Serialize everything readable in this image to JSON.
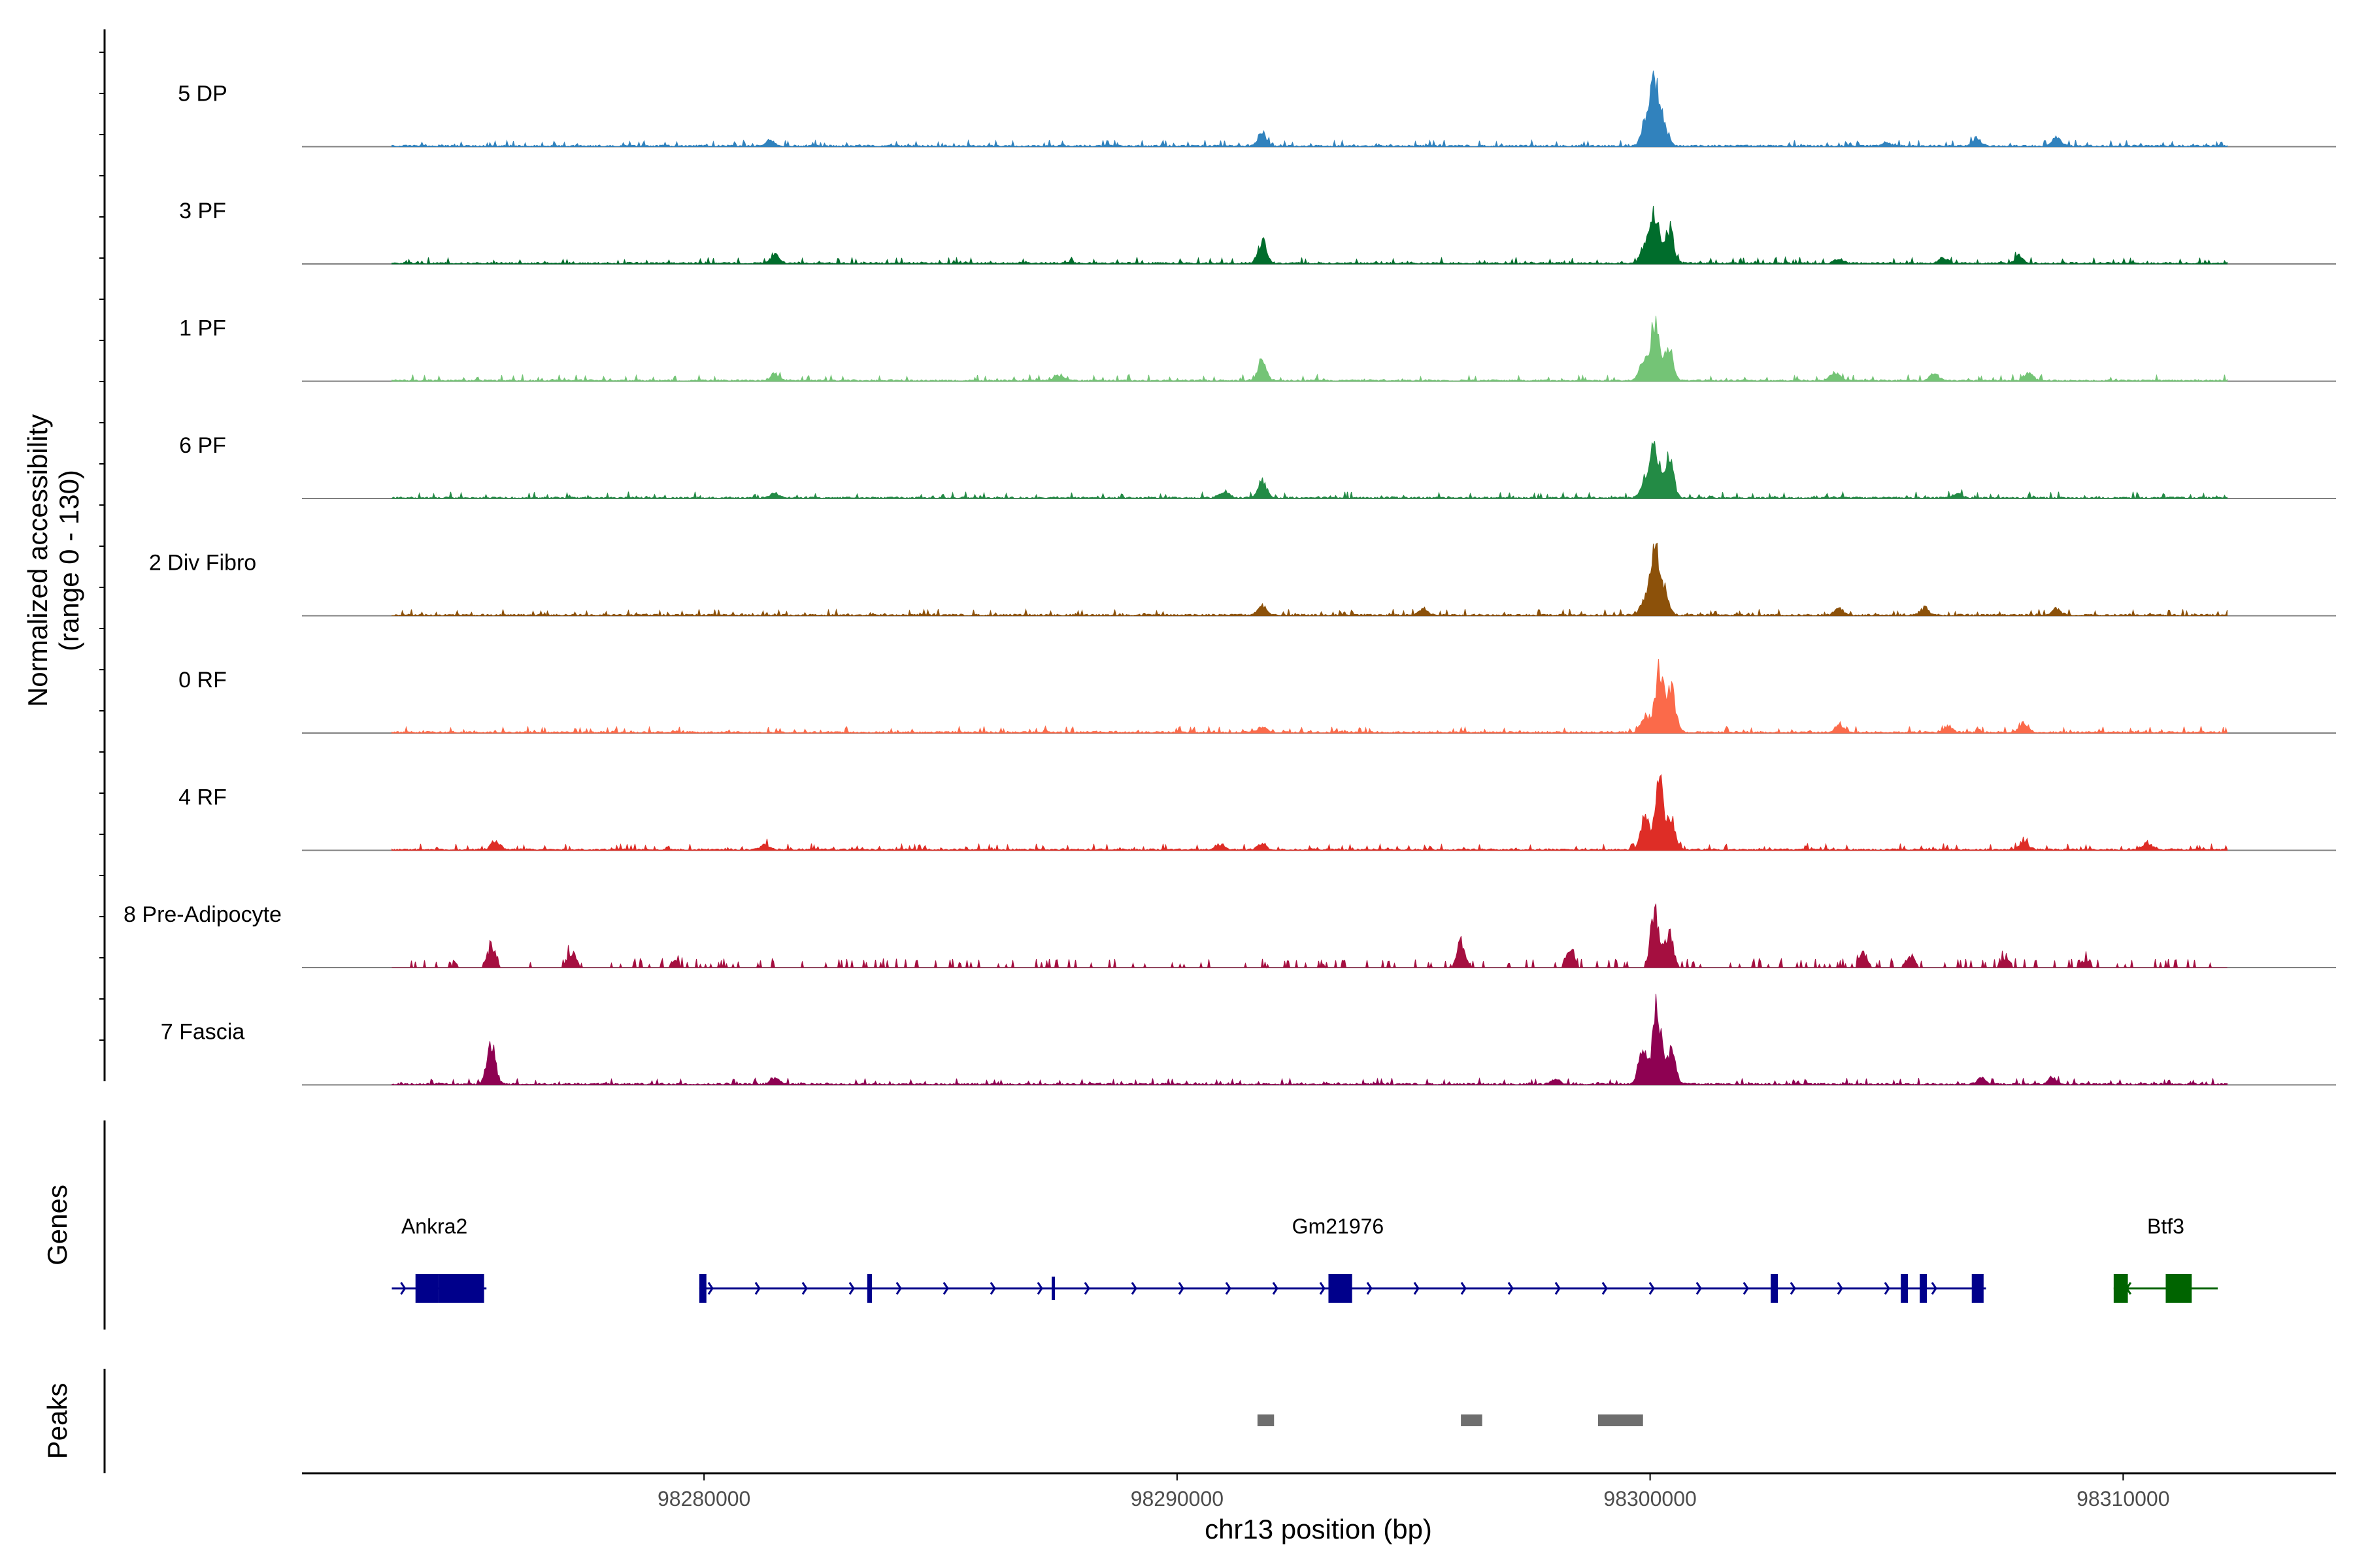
{
  "chart_data": {
    "type": "area",
    "title": "",
    "region": {
      "chromosome": "chr13",
      "start": 98271500,
      "end": 98314500,
      "track_start": 98273400,
      "track_end": 98312200
    },
    "ylabel_line1": "Normalized accessibility",
    "ylabel_line2": "(range 0 - 130)",
    "ylim": [
      0,
      130
    ],
    "xlabel": "chr13 position (bp)",
    "xticks": [
      98280000,
      98290000,
      98300000,
      98310000
    ],
    "xtick_labels": [
      "98280000",
      "98290000",
      "98300000",
      "98310000"
    ],
    "tracks": [
      {
        "name": "5 DP",
        "color": "#3182bd",
        "sparse": false,
        "peaks": [
          [
            98300100,
            110
          ],
          [
            98299900,
            40
          ],
          [
            98300300,
            30
          ],
          [
            98291800,
            22
          ],
          [
            98281400,
            10
          ],
          [
            98306900,
            14
          ],
          [
            98308600,
            14
          ],
          [
            98305000,
            6
          ]
        ]
      },
      {
        "name": "3 PF",
        "color": "#006d2c",
        "sparse": false,
        "peaks": [
          [
            98300100,
            80
          ],
          [
            98300400,
            60
          ],
          [
            98299900,
            30
          ],
          [
            98291800,
            38
          ],
          [
            98281500,
            18
          ],
          [
            98306200,
            10
          ],
          [
            98307800,
            14
          ],
          [
            98304000,
            8
          ]
        ]
      },
      {
        "name": "1 PF",
        "color": "#74c476",
        "sparse": false,
        "peaks": [
          [
            98300100,
            100
          ],
          [
            98300400,
            55
          ],
          [
            98299850,
            30
          ],
          [
            98291800,
            35
          ],
          [
            98281500,
            12
          ],
          [
            98303900,
            14
          ],
          [
            98308000,
            14
          ],
          [
            98306000,
            12
          ],
          [
            98287500,
            10
          ]
        ]
      },
      {
        "name": "6 PF",
        "color": "#238b45",
        "sparse": false,
        "peaks": [
          [
            98300100,
            90
          ],
          [
            98300400,
            70
          ],
          [
            98299900,
            30
          ],
          [
            98291800,
            30
          ],
          [
            98291000,
            10
          ],
          [
            98281500,
            8
          ],
          [
            98306500,
            8
          ]
        ]
      },
      {
        "name": "2 Div Fibro",
        "color": "#8c510a",
        "sparse": false,
        "peaks": [
          [
            98300100,
            100
          ],
          [
            98300300,
            40
          ],
          [
            98299900,
            30
          ],
          [
            98291800,
            14
          ],
          [
            98295200,
            10
          ],
          [
            98304000,
            12
          ],
          [
            98305800,
            12
          ],
          [
            98308600,
            10
          ]
        ]
      },
      {
        "name": "0 RF",
        "color": "#fb6a4a",
        "sparse": false,
        "peaks": [
          [
            98300200,
            110
          ],
          [
            98300450,
            70
          ],
          [
            98299900,
            30
          ],
          [
            98291800,
            8
          ],
          [
            98304000,
            12
          ],
          [
            98307900,
            16
          ],
          [
            98306300,
            10
          ]
        ]
      },
      {
        "name": "4 RF",
        "color": "#de2d26",
        "sparse": false,
        "peaks": [
          [
            98300200,
            110
          ],
          [
            98299900,
            55
          ],
          [
            98300450,
            50
          ],
          [
            98275600,
            14
          ],
          [
            98281300,
            8
          ],
          [
            98290900,
            10
          ],
          [
            98291800,
            10
          ],
          [
            98307900,
            14
          ],
          [
            98310500,
            12
          ]
        ]
      },
      {
        "name": "8 Pre-Adipocyte",
        "color": "#a50f40",
        "sparse": true,
        "peaks": [
          [
            98300100,
            100
          ],
          [
            98300400,
            55
          ],
          [
            98296000,
            45
          ],
          [
            98275500,
            35
          ],
          [
            98277200,
            25
          ],
          [
            98279400,
            12
          ],
          [
            98298300,
            30
          ],
          [
            98304500,
            25
          ],
          [
            98305500,
            20
          ],
          [
            98307500,
            15
          ],
          [
            98309200,
            12
          ]
        ]
      },
      {
        "name": "7 Fascia",
        "color": "#8e0152",
        "sparse": false,
        "peaks": [
          [
            98300150,
            130
          ],
          [
            98299850,
            60
          ],
          [
            98300450,
            55
          ],
          [
            98275500,
            70
          ],
          [
            98281500,
            10
          ],
          [
            98298000,
            8
          ],
          [
            98307000,
            10
          ],
          [
            98308500,
            10
          ]
        ]
      }
    ],
    "genes_track_label": "Genes",
    "peaks_track_label": "Peaks",
    "genes": [
      {
        "name": "Ankra2",
        "color": "#00008b",
        "strand": "+",
        "start": 98273400,
        "end": 98275400,
        "exons": [
          [
            98273900,
            98274400,
            "thick"
          ],
          [
            98274400,
            98275350,
            "thick"
          ]
        ],
        "label_at": 98274300
      },
      {
        "name": "Gm21976",
        "color": "#00008b",
        "strand": "+",
        "start": 98279900,
        "end": 98307100,
        "exons": [
          [
            98279900,
            98280050,
            "thick"
          ],
          [
            98283450,
            98283550,
            "thick"
          ],
          [
            98287350,
            98287400,
            "thin"
          ],
          [
            98293200,
            98293700,
            "thick"
          ],
          [
            98302550,
            98302700,
            "thick"
          ],
          [
            98305300,
            98305450,
            "thick"
          ],
          [
            98305700,
            98305850,
            "thick"
          ],
          [
            98306800,
            98307050,
            "thick"
          ]
        ],
        "label_at": 98293400
      },
      {
        "name": "Btf3",
        "color": "#006400",
        "strand": "-",
        "start": 98309800,
        "end": 98312000,
        "exons": [
          [
            98309800,
            98310100,
            "thick"
          ],
          [
            98310900,
            98311450,
            "thick"
          ]
        ],
        "label_at": 98310900
      }
    ],
    "peak_regions": [
      [
        98291700,
        98292050
      ],
      [
        98296000,
        98296450
      ],
      [
        98298900,
        98299850
      ]
    ]
  }
}
